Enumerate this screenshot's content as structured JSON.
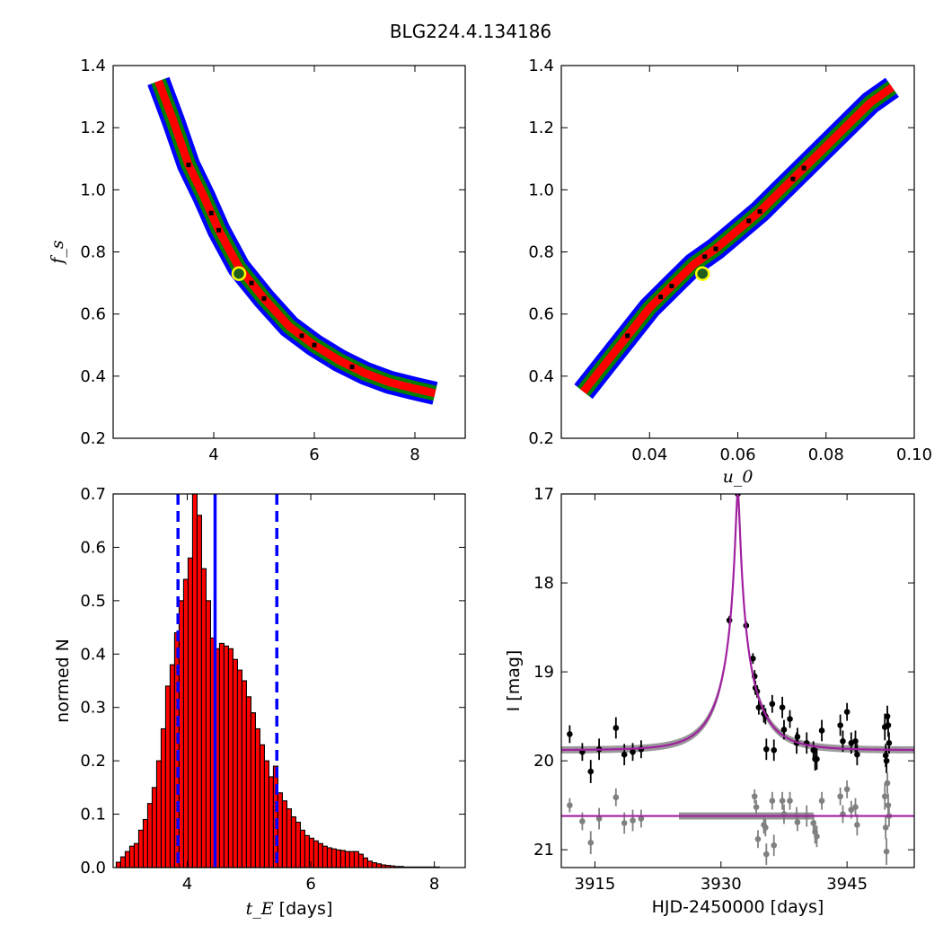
{
  "figure": {
    "title": "BLG224.4.134186"
  },
  "chart_data": [
    {
      "type": "heatmap",
      "panel": "top-left",
      "xlabel": "",
      "ylabel": "f_s",
      "xlim": [
        2.0,
        9.0
      ],
      "ylim": [
        0.2,
        1.4
      ],
      "xticks": [
        4,
        6,
        8
      ],
      "yticks": [
        0.2,
        0.4,
        0.6,
        0.8,
        1.0,
        1.2,
        1.4
      ],
      "colors": {
        "outer": "#0000ff",
        "mid": "#008000",
        "inner": "#ff0000",
        "core": "#000000"
      },
      "best_fit": {
        "x": 4.5,
        "y": 0.73
      },
      "ridge": [
        [
          2.9,
          1.35
        ],
        [
          3.2,
          1.22
        ],
        [
          3.5,
          1.08
        ],
        [
          3.8,
          0.98
        ],
        [
          4.1,
          0.87
        ],
        [
          4.5,
          0.75
        ],
        [
          5.0,
          0.65
        ],
        [
          5.5,
          0.56
        ],
        [
          6.0,
          0.5
        ],
        [
          6.5,
          0.45
        ],
        [
          7.0,
          0.41
        ],
        [
          7.5,
          0.38
        ],
        [
          8.0,
          0.36
        ],
        [
          8.4,
          0.345
        ]
      ]
    },
    {
      "type": "heatmap",
      "panel": "top-right",
      "xlabel": "u_0",
      "ylabel": "",
      "xlim": [
        0.02,
        0.1
      ],
      "ylim": [
        0.2,
        1.4
      ],
      "xticks": [
        0.04,
        0.06,
        0.08,
        0.1
      ],
      "yticks": [
        0.2,
        0.4,
        0.6,
        0.8,
        1.0,
        1.2,
        1.4
      ],
      "colors": {
        "outer": "#0000ff",
        "mid": "#008000",
        "inner": "#ff0000",
        "core": "#000000"
      },
      "best_fit": {
        "x": 0.052,
        "y": 0.73
      },
      "ridge": [
        [
          0.025,
          0.35
        ],
        [
          0.03,
          0.44
        ],
        [
          0.035,
          0.53
        ],
        [
          0.04,
          0.62
        ],
        [
          0.045,
          0.69
        ],
        [
          0.05,
          0.76
        ],
        [
          0.055,
          0.81
        ],
        [
          0.06,
          0.87
        ],
        [
          0.065,
          0.93
        ],
        [
          0.07,
          1.0
        ],
        [
          0.075,
          1.07
        ],
        [
          0.08,
          1.14
        ],
        [
          0.085,
          1.21
        ],
        [
          0.09,
          1.28
        ],
        [
          0.095,
          1.33
        ]
      ]
    },
    {
      "type": "bar",
      "panel": "bottom-left",
      "xlabel_var": "t_E",
      "xlabel_unit": " [days]",
      "ylabel": "normed N",
      "xlim": [
        2.8,
        8.5
      ],
      "ylim": [
        0.0,
        0.7
      ],
      "xticks": [
        4,
        6,
        8
      ],
      "yticks": [
        0.0,
        0.1,
        0.2,
        0.3,
        0.4,
        0.5,
        0.6,
        0.7
      ],
      "bin_start": 2.85,
      "bin_width": 0.0727,
      "values": [
        0.01,
        0.02,
        0.03,
        0.04,
        0.045,
        0.07,
        0.09,
        0.12,
        0.15,
        0.2,
        0.26,
        0.34,
        0.38,
        0.44,
        0.5,
        0.54,
        0.58,
        0.7,
        0.66,
        0.56,
        0.5,
        0.43,
        0.41,
        0.42,
        0.415,
        0.41,
        0.39,
        0.37,
        0.35,
        0.32,
        0.29,
        0.26,
        0.23,
        0.2,
        0.17,
        0.19,
        0.14,
        0.125,
        0.11,
        0.095,
        0.085,
        0.07,
        0.06,
        0.055,
        0.05,
        0.045,
        0.04,
        0.037,
        0.035,
        0.033,
        0.032,
        0.03,
        0.03,
        0.03,
        0.025,
        0.018,
        0.012,
        0.009,
        0.007,
        0.005,
        0.004,
        0.003,
        0.002,
        0.002,
        0.001,
        0.001,
        0.001,
        0.001,
        0.001,
        0.001,
        0.001,
        0.001
      ],
      "bar_color": "#ff0000",
      "vlines": [
        {
          "x": 3.85,
          "style": "dashed",
          "color": "#0000ff"
        },
        {
          "x": 4.45,
          "style": "solid",
          "color": "#0000ff"
        },
        {
          "x": 5.45,
          "style": "dashed",
          "color": "#0000ff"
        }
      ]
    },
    {
      "type": "scatter",
      "panel": "bottom-right",
      "xlabel": "HJD-2450000 [days]",
      "ylabel": "I [mag]",
      "xlim": [
        3911,
        3953
      ],
      "ylim": [
        21.2,
        17.0
      ],
      "y_inverted": true,
      "xticks": [
        3915,
        3930,
        3945
      ],
      "yticks": [
        17,
        18,
        19,
        20,
        21
      ],
      "model": {
        "t0": 3932.0,
        "tE": 4.45,
        "u0": 0.052,
        "baseline": 19.88,
        "color": "#a020a0"
      },
      "series": [
        {
          "color": "#000000",
          "points": [
            [
              3912,
              19.7,
              0.1
            ],
            [
              3913.5,
              19.9,
              0.1
            ],
            [
              3914.5,
              20.12,
              0.13
            ],
            [
              3915.5,
              19.87,
              0.12
            ],
            [
              3917.5,
              19.63,
              0.12
            ],
            [
              3918.5,
              19.93,
              0.12
            ],
            [
              3919.5,
              19.9,
              0.1
            ],
            [
              3920.5,
              19.87,
              0.1
            ],
            [
              3931,
              18.42,
              0.05
            ],
            [
              3932,
              17.0,
              0.03
            ],
            [
              3933,
              18.48,
              0.05
            ],
            [
              3933.8,
              18.85,
              0.06
            ],
            [
              3934,
              19.05,
              0.07
            ],
            [
              3934.1,
              19.18,
              0.08
            ],
            [
              3934.3,
              19.22,
              0.07
            ],
            [
              3934.5,
              19.4,
              0.08
            ],
            [
              3935.1,
              19.47,
              0.1
            ],
            [
              3935.3,
              19.5,
              0.09
            ],
            [
              3935.4,
              19.87,
              0.12
            ],
            [
              3936.1,
              19.36,
              0.1
            ],
            [
              3936.3,
              19.88,
              0.12
            ],
            [
              3937.3,
              19.4,
              0.12
            ],
            [
              3937.5,
              19.65,
              0.11
            ],
            [
              3938.2,
              19.53,
              0.1
            ],
            [
              3939,
              19.8,
              0.12
            ],
            [
              3939.1,
              19.73,
              0.1
            ],
            [
              3940.2,
              19.8,
              0.12
            ],
            [
              3941,
              19.88,
              0.1
            ],
            [
              3941.2,
              19.98,
              0.13
            ],
            [
              3941.4,
              19.98,
              0.12
            ],
            [
              3942,
              19.66,
              0.12
            ],
            [
              3944.2,
              19.6,
              0.12
            ],
            [
              3944.5,
              19.78,
              0.12
            ],
            [
              3945,
              19.45,
              0.1
            ],
            [
              3945.5,
              19.8,
              0.12
            ],
            [
              3946,
              19.78,
              0.12
            ],
            [
              3946.2,
              19.93,
              0.12
            ],
            [
              3949.5,
              19.62,
              0.15
            ],
            [
              3949.6,
              19.94,
              0.13
            ],
            [
              3949.7,
              20.0,
              0.14
            ],
            [
              3949.8,
              19.5,
              0.12
            ],
            [
              3949.9,
              19.6,
              0.13
            ],
            [
              3950,
              19.8,
              0.12
            ]
          ]
        },
        {
          "color": "#808080",
          "points": [
            [
              3912,
              20.5,
              0.08
            ],
            [
              3913.5,
              20.68,
              0.1
            ],
            [
              3914.5,
              20.92,
              0.13
            ],
            [
              3915.5,
              20.65,
              0.12
            ],
            [
              3917.5,
              20.41,
              0.1
            ],
            [
              3918.5,
              20.7,
              0.12
            ],
            [
              3919.5,
              20.67,
              0.12
            ],
            [
              3920.5,
              20.65,
              0.1
            ],
            [
              3934,
              20.4,
              0.08
            ],
            [
              3934.2,
              20.52,
              0.08
            ],
            [
              3934.4,
              20.88,
              0.1
            ],
            [
              3935.1,
              20.72,
              0.1
            ],
            [
              3935.3,
              20.75,
              0.1
            ],
            [
              3935.4,
              21.05,
              0.12
            ],
            [
              3936.1,
              20.45,
              0.1
            ],
            [
              3936.3,
              20.95,
              0.12
            ],
            [
              3937.3,
              20.45,
              0.1
            ],
            [
              3937.5,
              20.6,
              0.11
            ],
            [
              3938.2,
              20.45,
              0.1
            ],
            [
              3939,
              20.62,
              0.1
            ],
            [
              3939.1,
              20.69,
              0.1
            ],
            [
              3940.2,
              20.62,
              0.12
            ],
            [
              3941,
              20.7,
              0.1
            ],
            [
              3941.2,
              20.8,
              0.13
            ],
            [
              3941.4,
              20.85,
              0.12
            ],
            [
              3942,
              20.45,
              0.1
            ],
            [
              3944.2,
              20.4,
              0.1
            ],
            [
              3944.5,
              20.6,
              0.1
            ],
            [
              3945,
              20.32,
              0.1
            ],
            [
              3945.5,
              20.55,
              0.1
            ],
            [
              3946,
              20.52,
              0.1
            ],
            [
              3946.2,
              20.72,
              0.12
            ],
            [
              3949.5,
              20.4,
              0.15
            ],
            [
              3949.6,
              20.75,
              0.13
            ],
            [
              3949.7,
              21.02,
              0.15
            ],
            [
              3949.8,
              20.25,
              0.12
            ],
            [
              3949.9,
              20.5,
              0.13
            ],
            [
              3950,
              20.62,
              0.12
            ]
          ]
        }
      ]
    }
  ]
}
